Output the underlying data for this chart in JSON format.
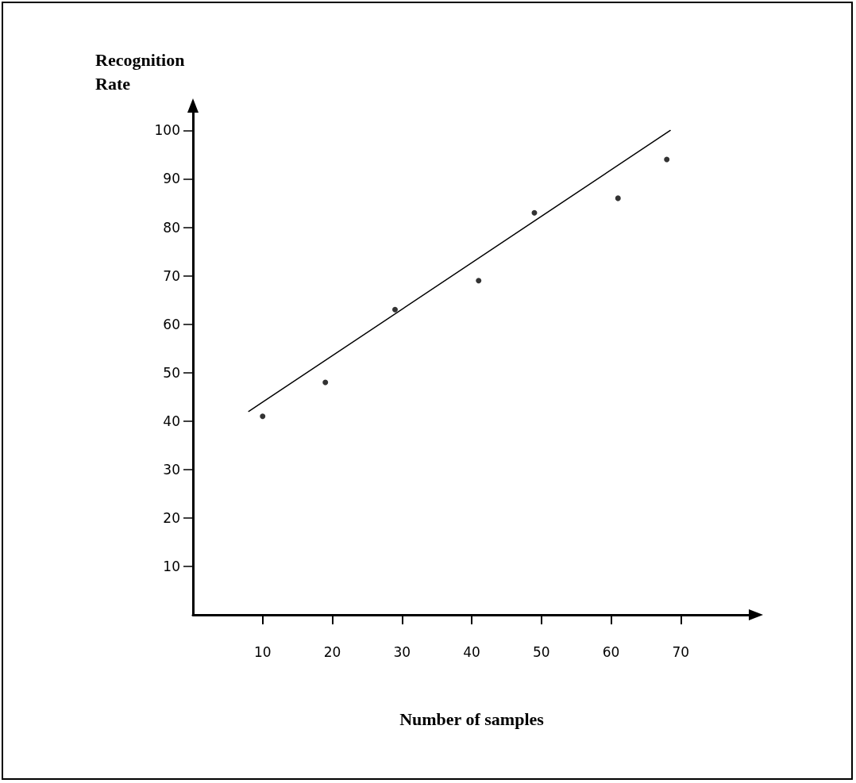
{
  "chart_data": {
    "type": "scatter",
    "xlabel": "Number of samples",
    "ylabel": "Recognition\nRate",
    "series": [
      {
        "type": "scatter",
        "color": "#000000",
        "x": [
          10,
          19,
          29,
          41,
          49,
          61,
          68
        ],
        "values": [
          41,
          48,
          63,
          69,
          83,
          86,
          94
        ],
        "marker": "circle"
      },
      {
        "type": "line",
        "color": "#000000",
        "x": [
          8,
          68.5
        ],
        "values": [
          42,
          100
        ],
        "marker": "none",
        "line_style": "solid"
      }
    ],
    "xlim": [
      0,
      80
    ],
    "ylim": [
      0,
      104
    ],
    "xticks": [
      10,
      20,
      30,
      40,
      50,
      60,
      70
    ],
    "yticks": [
      10,
      20,
      30,
      40,
      50,
      60,
      70,
      80,
      90,
      100
    ],
    "grid": false
  }
}
